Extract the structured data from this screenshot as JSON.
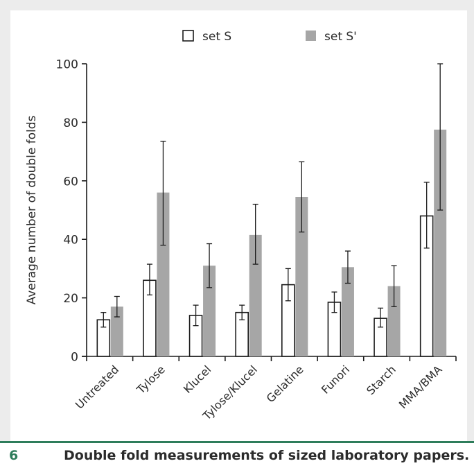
{
  "chart_data": {
    "type": "bar",
    "title": "",
    "xlabel": "",
    "ylabel": "Average number of double folds",
    "ylim": [
      0,
      100
    ],
    "yticks": [
      0,
      20,
      40,
      60,
      80,
      100
    ],
    "categories": [
      "Untreated",
      "Tylose",
      "Klucel",
      "Tylose/Klucel",
      "Gelatine",
      "Funori",
      "Starch",
      "MMA/BMA"
    ],
    "series": [
      {
        "name": "set S",
        "color": "#ffffff",
        "stroke": "#1a1a1a",
        "values": [
          12.5,
          26,
          14,
          15,
          24.5,
          18.5,
          13,
          48
        ],
        "error_low": [
          10,
          21,
          10.5,
          12.5,
          19,
          15,
          10,
          37
        ],
        "error_high": [
          15,
          31.5,
          17.5,
          17.5,
          30,
          22,
          16.5,
          59.5
        ]
      },
      {
        "name": "set S'",
        "color": "#a6a6a6",
        "stroke": "none",
        "values": [
          17,
          56,
          31,
          41.5,
          54.5,
          30.5,
          24,
          77.5
        ],
        "error_low": [
          13.5,
          38,
          23.5,
          31.5,
          42.5,
          25,
          17,
          50
        ],
        "error_high": [
          20.5,
          73.5,
          38.5,
          52,
          66.5,
          36,
          31,
          100
        ]
      }
    ],
    "legend": "top"
  },
  "caption": {
    "number": "6",
    "text": "Double fold measurements of sized laboratory papers."
  }
}
